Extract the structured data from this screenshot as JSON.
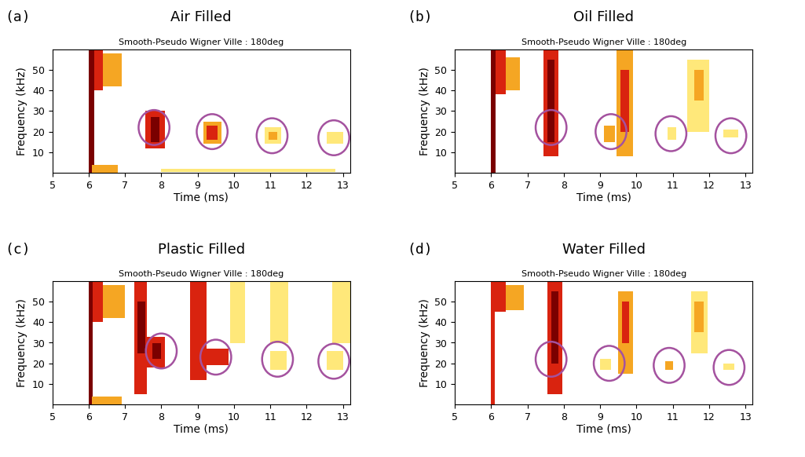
{
  "chart_data": [
    {
      "type": "heatmap",
      "panel": "(a)",
      "title": "Air Filled",
      "subtitle": "Smooth-Pseudo Wigner Ville : 180deg",
      "x_label": "Time (ms)",
      "y_label": "Frequency (kHz)",
      "xlim": [
        5,
        13.2
      ],
      "xticks": [
        5,
        6,
        7,
        8,
        9,
        10,
        11,
        12,
        13
      ],
      "ylim": [
        0,
        60
      ],
      "yticks": [
        10,
        20,
        30,
        40,
        50
      ],
      "colors": [
        "#ffe87a",
        "#f5a623",
        "#d9230f",
        "#7a0000"
      ],
      "regions": [
        [
          6.0,
          6.15,
          0,
          60,
          4
        ],
        [
          6.15,
          6.4,
          40,
          60,
          3
        ],
        [
          6.4,
          6.9,
          42,
          58,
          2
        ],
        [
          6.1,
          6.8,
          0,
          4,
          2
        ],
        [
          8.0,
          12.8,
          0.5,
          2,
          1
        ],
        [
          7.55,
          8.1,
          12,
          30,
          3
        ],
        [
          7.7,
          7.95,
          15,
          27,
          4
        ],
        [
          9.15,
          9.65,
          14,
          25,
          2
        ],
        [
          9.25,
          9.55,
          16,
          23,
          3
        ],
        [
          10.85,
          11.3,
          14,
          22,
          1
        ],
        [
          10.95,
          11.2,
          16,
          20,
          2
        ],
        [
          12.55,
          13.0,
          14,
          20,
          1
        ]
      ],
      "circles": [
        [
          7.8,
          22
        ],
        [
          9.4,
          20
        ],
        [
          11.05,
          18
        ],
        [
          12.75,
          17
        ]
      ]
    },
    {
      "type": "heatmap",
      "panel": "(b)",
      "title": "Oil Filled",
      "subtitle": "Smooth-Pseudo Wigner Ville : 180deg",
      "x_label": "Time (ms)",
      "y_label": "Frequency (kHz)",
      "xlim": [
        5,
        13.2
      ],
      "xticks": [
        5,
        6,
        7,
        8,
        9,
        10,
        11,
        12,
        13
      ],
      "ylim": [
        0,
        60
      ],
      "yticks": [
        10,
        20,
        30,
        40,
        50
      ],
      "colors": [
        "#ffe87a",
        "#f5a623",
        "#d9230f",
        "#7a0000"
      ],
      "regions": [
        [
          6.0,
          6.12,
          0,
          60,
          4
        ],
        [
          6.12,
          6.4,
          38,
          60,
          3
        ],
        [
          6.4,
          6.8,
          40,
          56,
          2
        ],
        [
          7.45,
          7.85,
          8,
          60,
          3
        ],
        [
          7.55,
          7.75,
          15,
          55,
          4
        ],
        [
          9.45,
          9.9,
          8,
          60,
          2
        ],
        [
          9.55,
          9.8,
          20,
          50,
          3
        ],
        [
          11.4,
          12.0,
          20,
          55,
          1
        ],
        [
          11.6,
          11.85,
          35,
          50,
          2
        ],
        [
          9.1,
          9.4,
          15,
          23,
          2
        ],
        [
          10.85,
          11.1,
          16,
          22,
          1
        ],
        [
          12.4,
          12.8,
          17,
          21,
          1
        ]
      ],
      "circles": [
        [
          7.65,
          22
        ],
        [
          9.3,
          20
        ],
        [
          10.95,
          19
        ],
        [
          12.6,
          18
        ]
      ]
    },
    {
      "type": "heatmap",
      "panel": "(c)",
      "title": "Plastic Filled",
      "subtitle": "Smooth-Pseudo Wigner Ville : 180deg",
      "x_label": "Time (ms)",
      "y_label": "Frequency (kHz)",
      "xlim": [
        5,
        13.2
      ],
      "xticks": [
        5,
        6,
        7,
        8,
        9,
        10,
        11,
        12,
        13
      ],
      "ylim": [
        0,
        60
      ],
      "yticks": [
        10,
        20,
        30,
        40,
        50
      ],
      "colors": [
        "#ffe87a",
        "#f5a623",
        "#d9230f",
        "#7a0000"
      ],
      "regions": [
        [
          6.0,
          6.12,
          0,
          60,
          4
        ],
        [
          6.12,
          6.4,
          40,
          60,
          3
        ],
        [
          6.4,
          7.0,
          42,
          58,
          2
        ],
        [
          6.1,
          6.9,
          0,
          4,
          2
        ],
        [
          7.25,
          7.6,
          5,
          60,
          3
        ],
        [
          7.35,
          7.55,
          25,
          50,
          4
        ],
        [
          7.6,
          8.1,
          18,
          33,
          3
        ],
        [
          7.75,
          8.0,
          22,
          30,
          4
        ],
        [
          8.8,
          9.25,
          12,
          60,
          3
        ],
        [
          9.25,
          9.85,
          19,
          27,
          3
        ],
        [
          9.9,
          10.3,
          30,
          60,
          1
        ],
        [
          11.0,
          11.5,
          30,
          60,
          1
        ],
        [
          12.7,
          13.2,
          30,
          60,
          1
        ],
        [
          11.0,
          11.45,
          17,
          26,
          1
        ],
        [
          12.55,
          13.0,
          17,
          26,
          1
        ]
      ],
      "circles": [
        [
          8.0,
          26
        ],
        [
          9.5,
          23
        ],
        [
          11.2,
          22
        ],
        [
          12.75,
          21
        ]
      ]
    },
    {
      "type": "heatmap",
      "panel": "(d)",
      "title": "Water Filled",
      "subtitle": "Smooth-Pseudo Wigner Ville : 180deg",
      "x_label": "Time (ms)",
      "y_label": "Frequency (kHz)",
      "xlim": [
        5,
        13.2
      ],
      "xticks": [
        5,
        6,
        7,
        8,
        9,
        10,
        11,
        12,
        13
      ],
      "ylim": [
        0,
        60
      ],
      "yticks": [
        10,
        20,
        30,
        40,
        50
      ],
      "colors": [
        "#ffe87a",
        "#f5a623",
        "#d9230f",
        "#7a0000"
      ],
      "regions": [
        [
          6.0,
          6.1,
          0,
          60,
          3
        ],
        [
          6.1,
          6.4,
          45,
          60,
          3
        ],
        [
          6.4,
          6.9,
          46,
          58,
          2
        ],
        [
          7.55,
          7.95,
          5,
          60,
          3
        ],
        [
          7.65,
          7.85,
          20,
          55,
          4
        ],
        [
          9.5,
          9.9,
          15,
          55,
          2
        ],
        [
          9.6,
          9.8,
          30,
          50,
          3
        ],
        [
          11.5,
          11.95,
          25,
          55,
          1
        ],
        [
          11.6,
          11.85,
          35,
          50,
          2
        ],
        [
          9.0,
          9.3,
          17,
          22,
          1
        ],
        [
          10.8,
          11.0,
          17,
          21,
          2
        ],
        [
          12.4,
          12.7,
          17,
          20,
          1
        ]
      ],
      "circles": [
        [
          7.65,
          22
        ],
        [
          9.25,
          20
        ],
        [
          10.9,
          19
        ],
        [
          12.55,
          18
        ]
      ]
    }
  ]
}
